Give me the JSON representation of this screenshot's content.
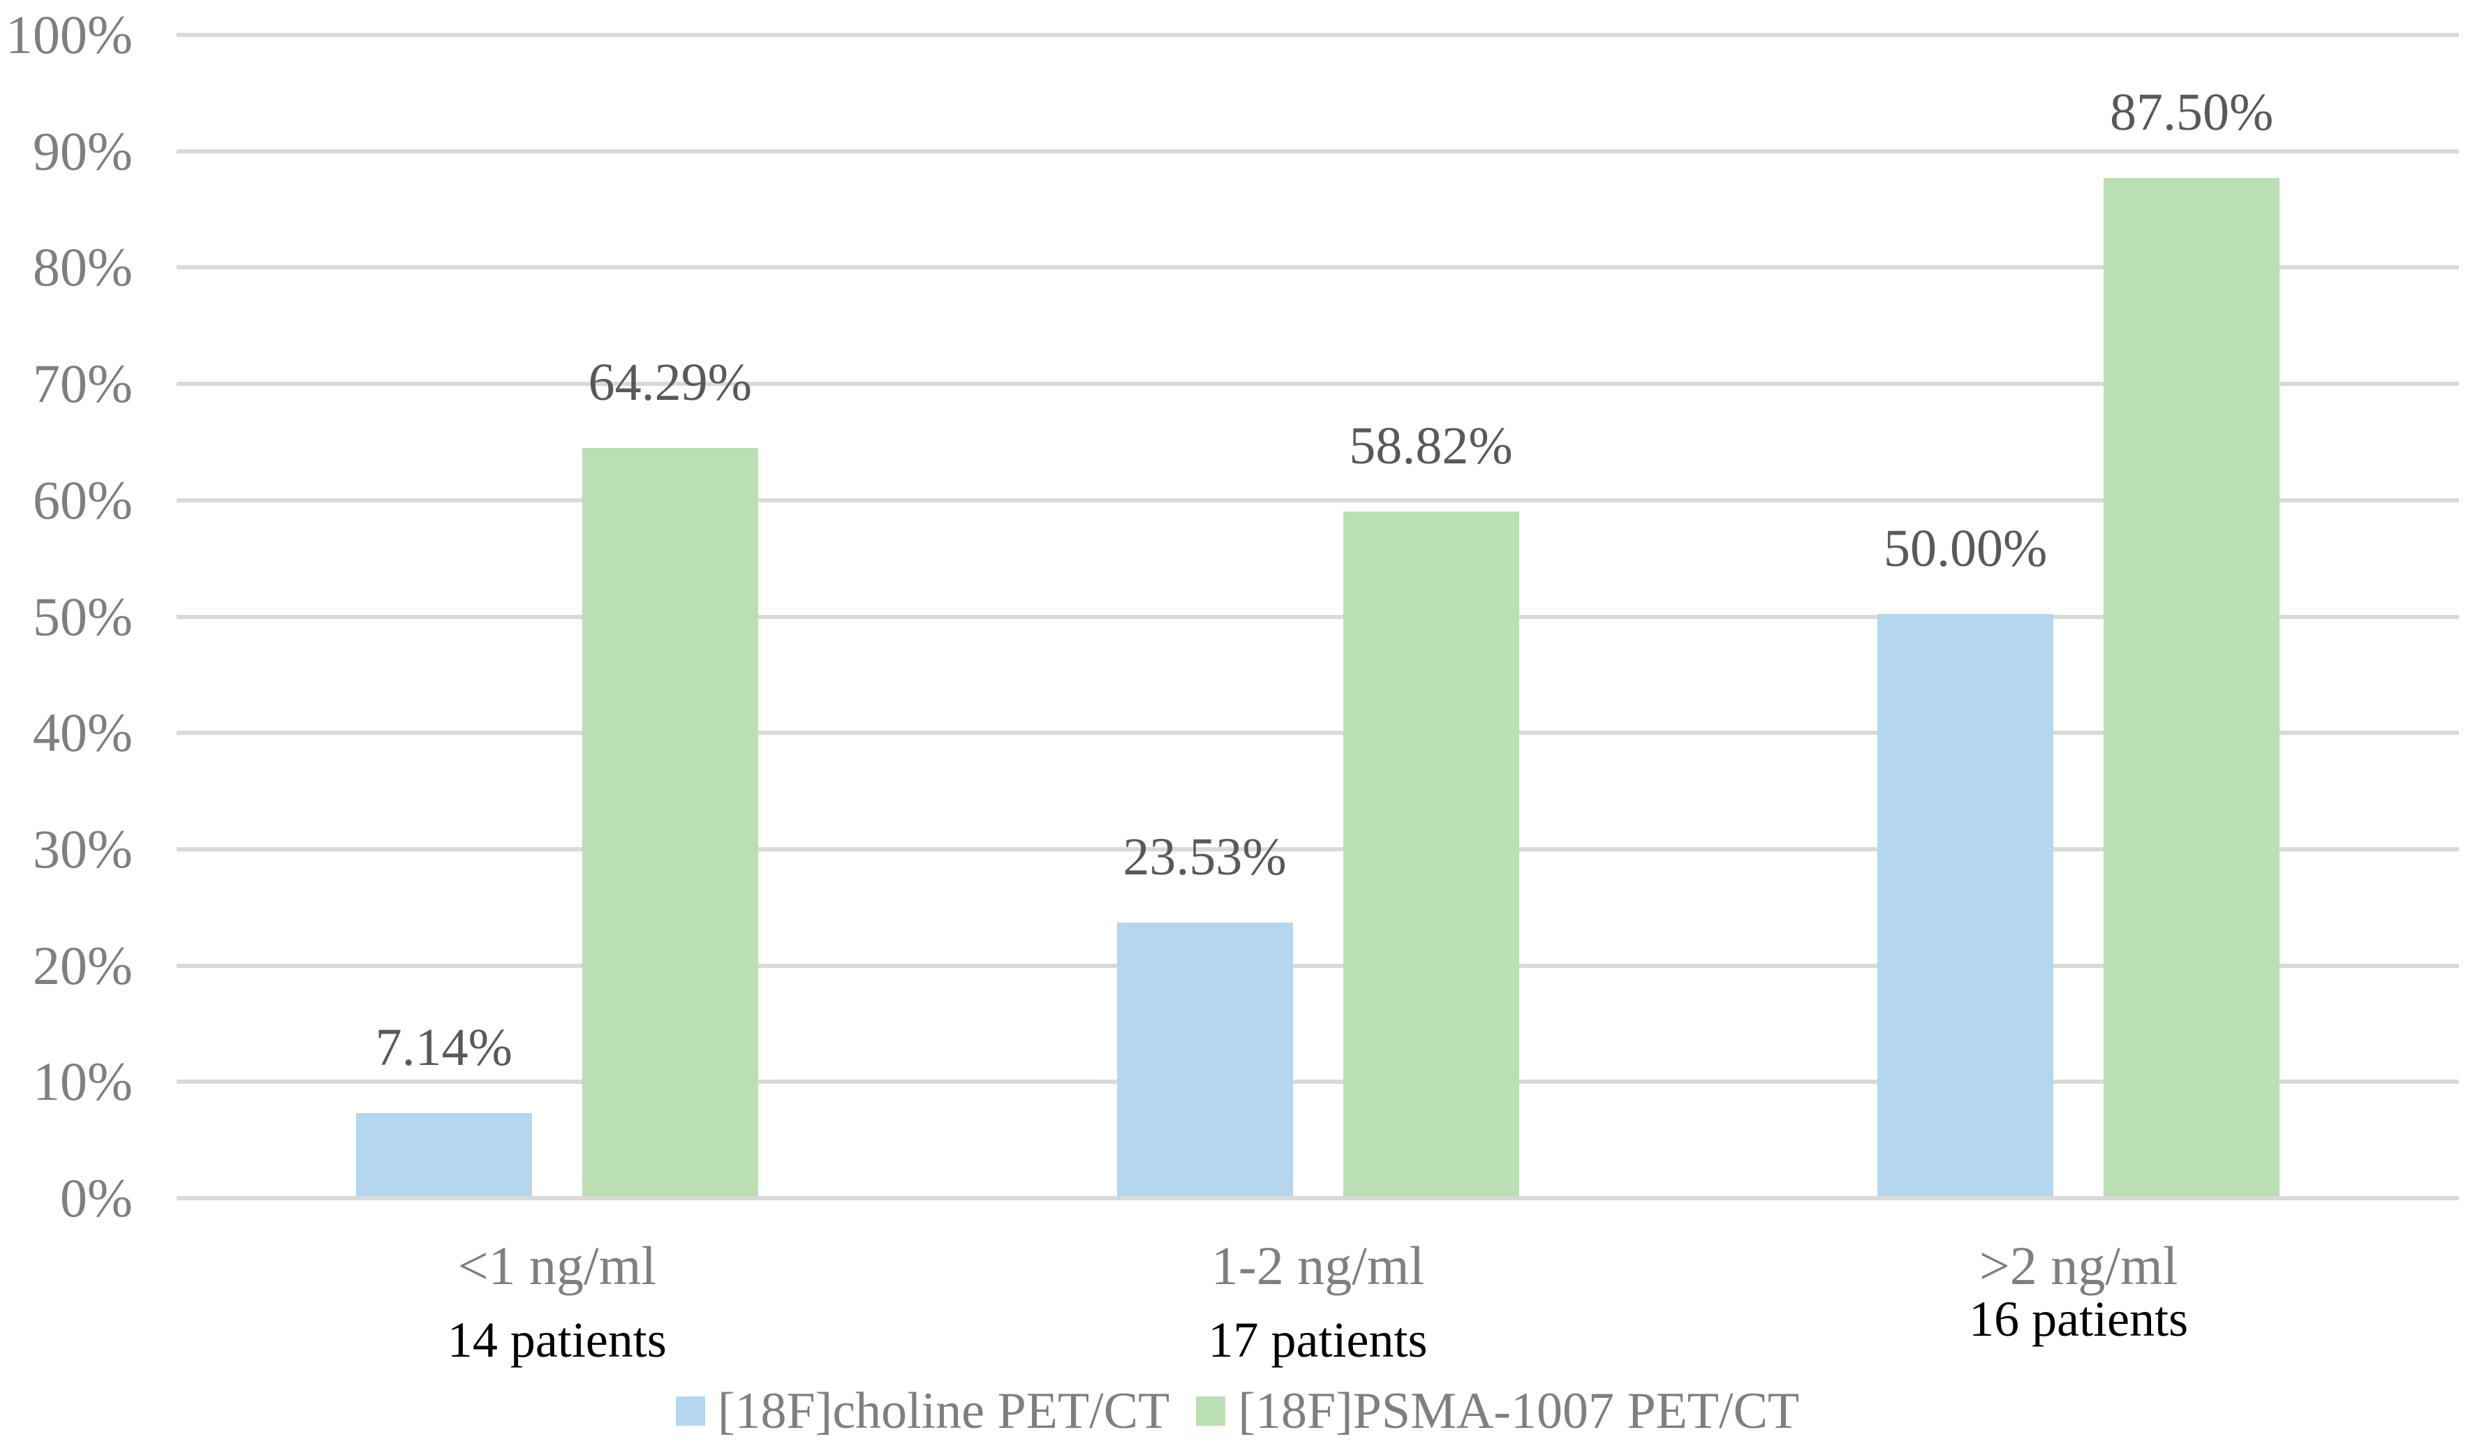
{
  "chart_data": {
    "type": "bar",
    "title": "",
    "xlabel": "",
    "ylabel": "",
    "categories": [
      "<1 ng/ml",
      "1-2 ng/ml",
      ">2 ng/ml"
    ],
    "category_sublabels": [
      "14 patients",
      "17 patients",
      "16 patients"
    ],
    "series": [
      {
        "name": "[18F]choline PET/CT",
        "color": "#B4D7EF",
        "values": [
          7.14,
          23.53,
          50.0
        ],
        "value_labels": [
          "7.14%",
          "23.53%",
          "50.00%"
        ]
      },
      {
        "name": "[18F]PSMA-1007 PET/CT",
        "color": "#B9DFB3",
        "values": [
          64.29,
          58.82,
          87.5
        ],
        "value_labels": [
          "64.29%",
          "58.82%",
          "87.50%"
        ]
      }
    ],
    "y_ticks": [
      "100%",
      "90%",
      "80%",
      "70%",
      "60%",
      "50%",
      "40%",
      "30%",
      "20%",
      "10%",
      "0%"
    ],
    "ylim": [
      0,
      100
    ],
    "grid": true,
    "legend_position": "bottom"
  },
  "colors": {
    "gridline": "#D9D9D9",
    "axis_text": "#7F7F7F",
    "data_label_text": "#595959",
    "category_text": "#7F7F7F",
    "patients_text": "#000000",
    "legend_text": "#7F7F7F",
    "background": "#FFFFFF"
  }
}
